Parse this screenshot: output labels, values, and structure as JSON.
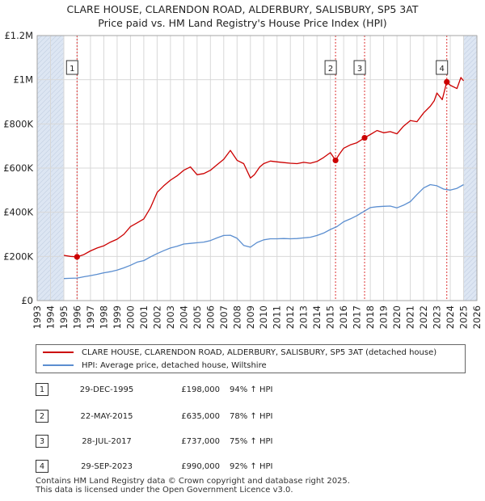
{
  "title_line1": "CLARE HOUSE, CLARENDON ROAD, ALDERBURY, SALISBURY, SP5 3AT",
  "title_line2": "Price paid vs. HM Land Registry's House Price Index (HPI)",
  "colors": {
    "property": "#cc0000",
    "hpi": "#5b8ed0",
    "shade": "#dde6f3",
    "marker_line": "#dd3333",
    "grid": "#d8d8d8"
  },
  "legend": {
    "property_label": "CLARE HOUSE, CLARENDON ROAD, ALDERBURY, SALISBURY, SP5 3AT (detached house)",
    "hpi_label": "HPI: Average price, detached house, Wiltshire"
  },
  "sales": [
    {
      "num": "1",
      "date": "29-DEC-1995",
      "price": "£198,000",
      "hpi_change": "94% ↑ HPI"
    },
    {
      "num": "2",
      "date": "22-MAY-2015",
      "price": "£635,000",
      "hpi_change": "78% ↑ HPI"
    },
    {
      "num": "3",
      "date": "28-JUL-2017",
      "price": "£737,000",
      "hpi_change": "75% ↑ HPI"
    },
    {
      "num": "4",
      "date": "29-SEP-2023",
      "price": "£990,000",
      "hpi_change": "92% ↑ HPI"
    }
  ],
  "footer": {
    "line1": "Contains HM Land Registry data © Crown copyright and database right 2025.",
    "line2": "This data is licensed under the Open Government Licence v3.0."
  },
  "chart_data": {
    "type": "line",
    "title": "CLARE HOUSE, CLARENDON ROAD, ALDERBURY, SALISBURY, SP5 3AT — Price paid vs. HM Land Registry's House Price Index (HPI)",
    "xlabel": "",
    "ylabel": "",
    "xlim": [
      1993,
      2026
    ],
    "ylim": [
      0,
      1200000
    ],
    "x_ticks": [
      1993,
      1994,
      1995,
      1996,
      1997,
      1998,
      1999,
      2000,
      2001,
      2002,
      2003,
      2004,
      2005,
      2006,
      2007,
      2008,
      2009,
      2010,
      2011,
      2012,
      2013,
      2014,
      2015,
      2016,
      2017,
      2018,
      2019,
      2020,
      2021,
      2022,
      2023,
      2024,
      2025,
      2026
    ],
    "y_ticks": [
      {
        "value": 0,
        "label": "£0"
      },
      {
        "value": 200000,
        "label": "£200K"
      },
      {
        "value": 400000,
        "label": "£400K"
      },
      {
        "value": 600000,
        "label": "£600K"
      },
      {
        "value": 800000,
        "label": "£800K"
      },
      {
        "value": 1000000,
        "label": "£1M"
      },
      {
        "value": 1200000,
        "label": "£1.2M"
      }
    ],
    "grid": true,
    "shaded_ranges": [
      [
        1993,
        1995.0
      ],
      [
        2025.0,
        2026
      ]
    ],
    "sale_markers": [
      {
        "label": "1",
        "x": 1995.99,
        "y": 198000
      },
      {
        "label": "2",
        "x": 2015.39,
        "y": 635000
      },
      {
        "label": "3",
        "x": 2017.57,
        "y": 737000
      },
      {
        "label": "4",
        "x": 2023.74,
        "y": 990000
      }
    ],
    "series": [
      {
        "name": "CLARE HOUSE, CLARENDON ROAD, ALDERBURY, SALISBURY, SP5 3AT (detached house)",
        "x": [
          1995.0,
          1995.5,
          1995.99,
          1996.5,
          1997.0,
          1997.5,
          1998.0,
          1998.5,
          1999.0,
          1999.5,
          2000.0,
          2000.5,
          2001.0,
          2001.5,
          2002.0,
          2002.5,
          2003.0,
          2003.5,
          2004.0,
          2004.5,
          2005.0,
          2005.5,
          2006.0,
          2006.5,
          2007.0,
          2007.5,
          2008.0,
          2008.5,
          2009.0,
          2009.3,
          2009.7,
          2010.0,
          2010.5,
          2011.0,
          2011.5,
          2012.0,
          2012.5,
          2013.0,
          2013.5,
          2014.0,
          2014.5,
          2015.0,
          2015.39,
          2015.7,
          2016.0,
          2016.5,
          2017.0,
          2017.57,
          2018.0,
          2018.5,
          2019.0,
          2019.5,
          2020.0,
          2020.5,
          2021.0,
          2021.5,
          2022.0,
          2022.5,
          2022.8,
          2023.0,
          2023.4,
          2023.74,
          2024.0,
          2024.5,
          2024.8,
          2025.0
        ],
        "y": [
          205000,
          200000,
          198000,
          208000,
          225000,
          238000,
          248000,
          265000,
          278000,
          300000,
          335000,
          352000,
          370000,
          420000,
          490000,
          520000,
          545000,
          565000,
          590000,
          605000,
          570000,
          575000,
          590000,
          615000,
          640000,
          680000,
          635000,
          620000,
          555000,
          570000,
          605000,
          620000,
          632000,
          628000,
          625000,
          622000,
          620000,
          626000,
          622000,
          630000,
          648000,
          670000,
          635000,
          665000,
          690000,
          705000,
          715000,
          737000,
          752000,
          770000,
          760000,
          765000,
          755000,
          790000,
          815000,
          810000,
          850000,
          880000,
          905000,
          940000,
          910000,
          990000,
          975000,
          960000,
          1010000,
          995000
        ]
      },
      {
        "name": "HPI: Average price, detached house, Wiltshire",
        "x": [
          1995.0,
          1995.5,
          1996.0,
          1996.5,
          1997.0,
          1997.5,
          1998.0,
          1998.5,
          1999.0,
          1999.5,
          2000.0,
          2000.5,
          2001.0,
          2001.5,
          2002.0,
          2002.5,
          2003.0,
          2003.5,
          2004.0,
          2004.5,
          2005.0,
          2005.5,
          2006.0,
          2006.5,
          2007.0,
          2007.5,
          2008.0,
          2008.5,
          2009.0,
          2009.5,
          2010.0,
          2010.5,
          2011.0,
          2011.5,
          2012.0,
          2012.5,
          2013.0,
          2013.5,
          2014.0,
          2014.5,
          2015.0,
          2015.5,
          2016.0,
          2016.5,
          2017.0,
          2017.5,
          2018.0,
          2018.5,
          2019.0,
          2019.5,
          2020.0,
          2020.5,
          2021.0,
          2021.5,
          2022.0,
          2022.5,
          2023.0,
          2023.5,
          2024.0,
          2024.5,
          2025.0
        ],
        "y": [
          100000,
          101000,
          102000,
          108000,
          113000,
          119000,
          126000,
          131000,
          138000,
          148000,
          160000,
          174000,
          181000,
          198000,
          213000,
          226000,
          238000,
          246000,
          256000,
          259000,
          262000,
          265000,
          272000,
          284000,
          295000,
          296000,
          282000,
          250000,
          242000,
          263000,
          275000,
          280000,
          280000,
          281000,
          280000,
          281000,
          284000,
          287000,
          295000,
          306000,
          322000,
          335000,
          357000,
          370000,
          385000,
          403000,
          421000,
          425000,
          427000,
          428000,
          420000,
          432000,
          448000,
          480000,
          510000,
          525000,
          520000,
          505000,
          500000,
          508000,
          525000
        ]
      }
    ]
  }
}
